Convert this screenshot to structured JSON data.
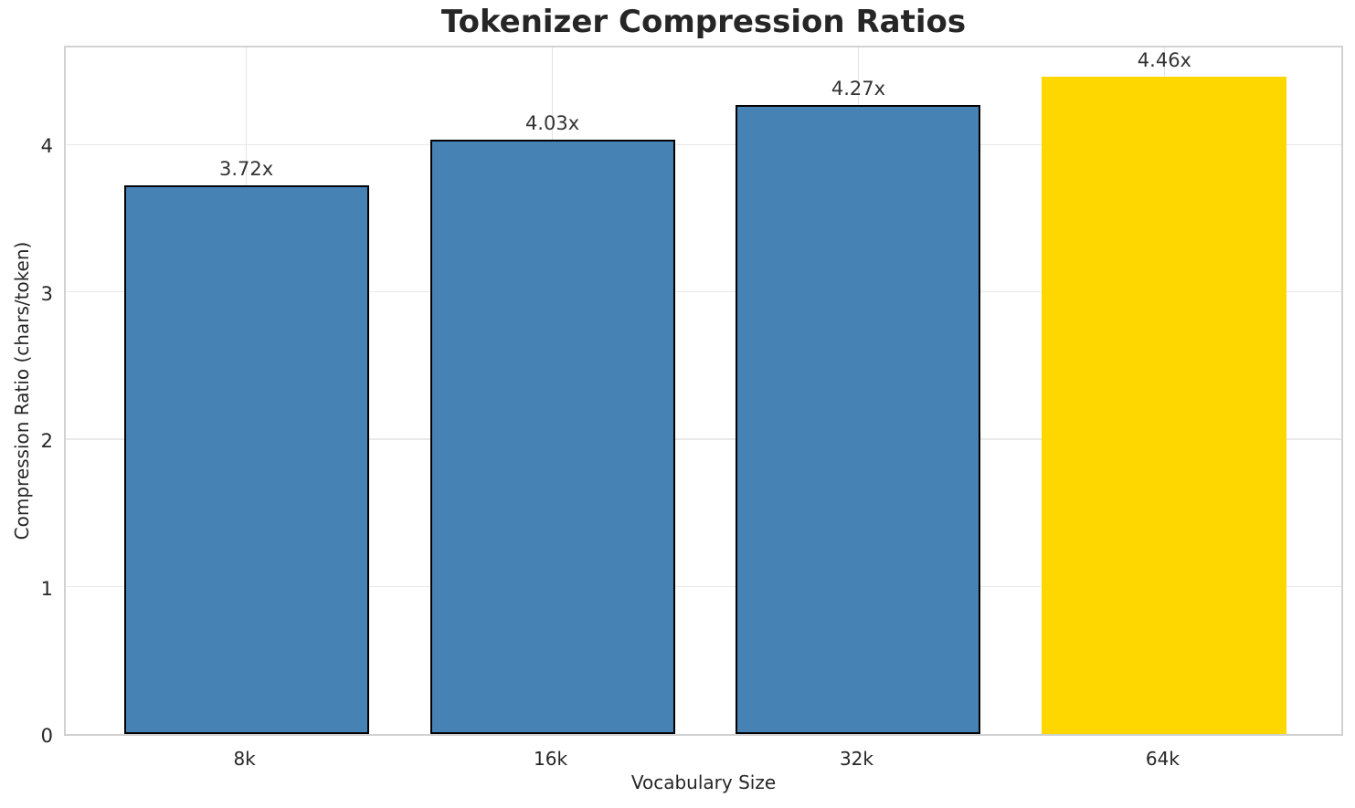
{
  "title": "Tokenizer Compression Ratios",
  "chart_data": {
    "type": "bar",
    "title": "Tokenizer Compression Ratios",
    "xlabel": "Vocabulary Size",
    "ylabel": "Compression Ratio (chars/token)",
    "categories": [
      "8k",
      "16k",
      "32k",
      "64k"
    ],
    "values": [
      3.72,
      4.03,
      4.27,
      4.46
    ],
    "bar_labels": [
      "3.72x",
      "4.03x",
      "4.27x",
      "4.46x"
    ],
    "yticks": [
      0,
      1,
      2,
      3,
      4
    ],
    "ylim": [
      0,
      4.683
    ],
    "bar_width_rel": 0.8,
    "x_margin": 0.05,
    "grid": "both",
    "legend": "none",
    "highlight_index": 3,
    "bar_colors": [
      "#4682B4",
      "#4682B4",
      "#4682B4",
      "#FFD700"
    ],
    "bar_edge_colors": [
      "#000000",
      "#000000",
      "#000000",
      "none"
    ],
    "colors": {
      "bar": "#4682B4",
      "highlight": "#FFD700",
      "edge": "#000000",
      "grid": "#e9e9e9",
      "spine": "#d2d2d2",
      "text": "#262626"
    }
  }
}
